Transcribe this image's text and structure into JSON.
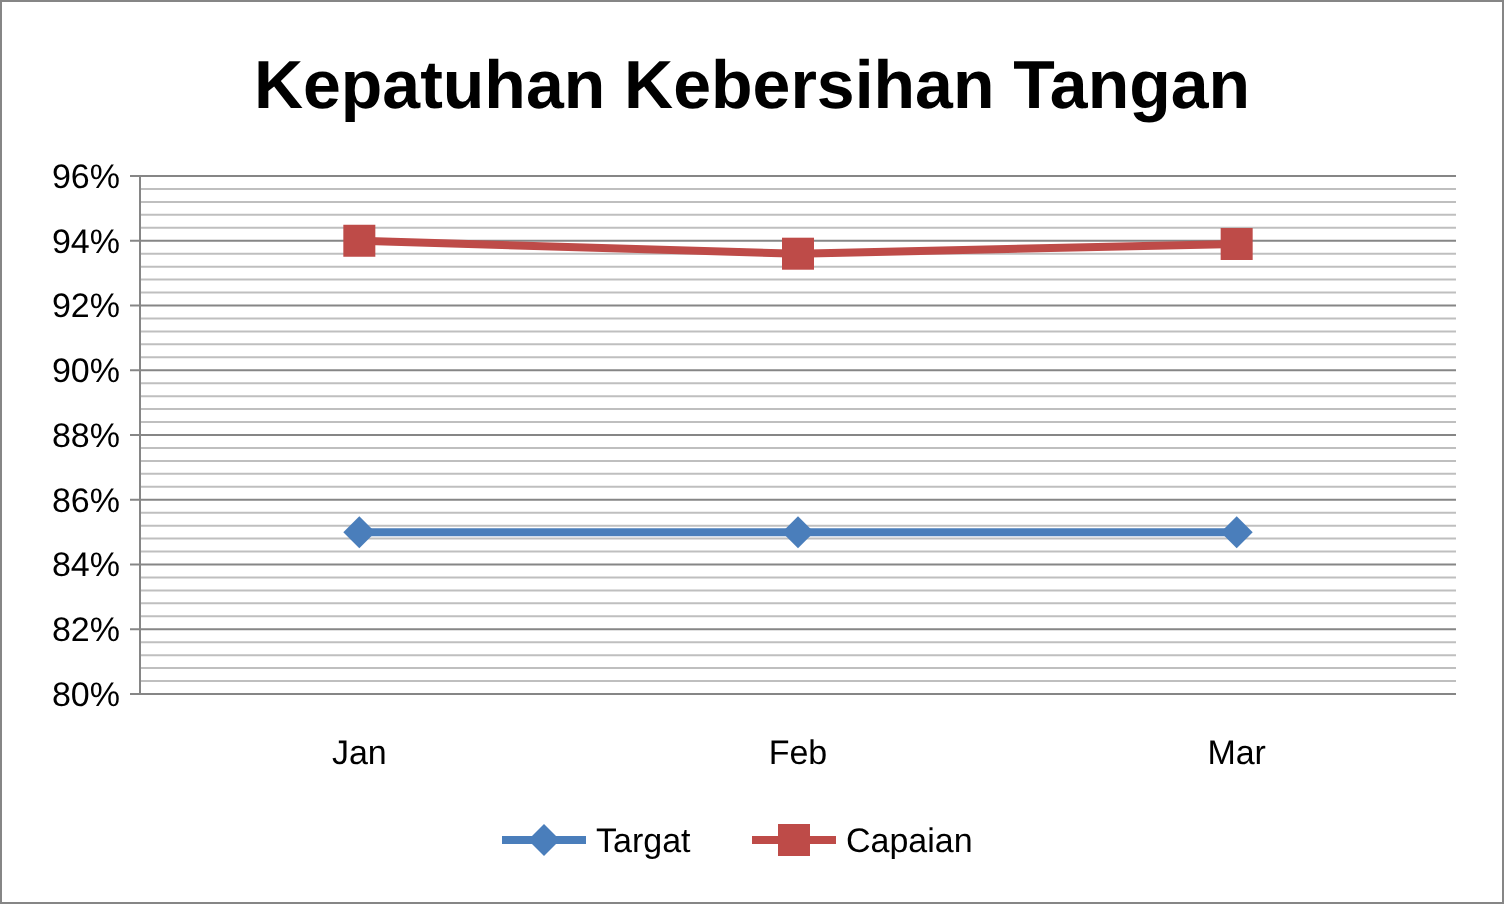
{
  "chart_data": {
    "type": "line",
    "title": "Kepatuhan Kebersihan Tangan",
    "categories": [
      "Jan",
      "Feb",
      "Mar"
    ],
    "series": [
      {
        "name": "Targat",
        "color": "#4a7ebb",
        "marker": "diamond",
        "values": [
          85,
          85,
          85
        ]
      },
      {
        "name": "Capaian",
        "color": "#be4b48",
        "marker": "square",
        "values": [
          94,
          93.6,
          93.9
        ]
      }
    ],
    "ylim": [
      80,
      96
    ],
    "yticks": [
      {
        "value": 80,
        "label": "80%"
      },
      {
        "value": 82,
        "label": "82%"
      },
      {
        "value": 84,
        "label": "84%"
      },
      {
        "value": 86,
        "label": "86%"
      },
      {
        "value": 88,
        "label": "88%"
      },
      {
        "value": 90,
        "label": "90%"
      },
      {
        "value": 92,
        "label": "92%"
      },
      {
        "value": 94,
        "label": "94%"
      },
      {
        "value": 96,
        "label": "96%"
      }
    ],
    "grid": true,
    "legend": "bottom"
  }
}
